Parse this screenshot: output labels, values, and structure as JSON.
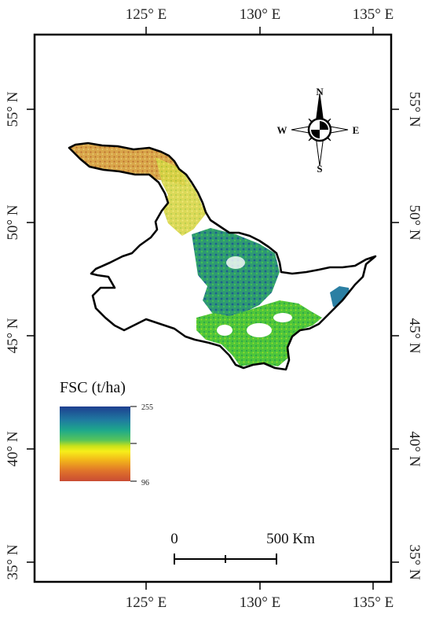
{
  "map": {
    "lon_ticks": [
      "125° E",
      "130° E",
      "135° E"
    ],
    "lat_ticks": [
      "55° N",
      "50° N",
      "45° N",
      "40° N",
      "35° N"
    ]
  },
  "compass": {
    "north": "N",
    "south": "S",
    "east": "E",
    "west": "W"
  },
  "legend": {
    "title": "FSC (t/ha)",
    "max_label": "255",
    "min_label": "96",
    "colors": [
      "#1e3f8f",
      "#1f7aa0",
      "#1ea98a",
      "#57c45a",
      "#c9e21a",
      "#f7ef1a",
      "#f2b51a",
      "#e0742a",
      "#c94b33"
    ]
  },
  "scale_bar": {
    "start_label": "0",
    "end_label": "500 Km"
  }
}
